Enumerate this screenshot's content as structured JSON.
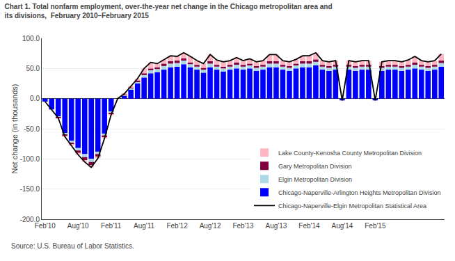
{
  "chart_data": {
    "type": "bar",
    "stacked": true,
    "title": "Chart 1. Total nonfarm employment, over-the-year net change in the Chicago metropolitan area and\nits divisions,  February 2010–February 2015",
    "y_label": "Net change (in thousands)",
    "annotations": [
      "Source: U.S. Bureau of Labor Statistics."
    ],
    "categories": [
      "Feb'10",
      null,
      null,
      null,
      null,
      "Aug'10",
      null,
      null,
      null,
      null,
      "Feb'11",
      null,
      null,
      null,
      null,
      "Aug'11",
      null,
      null,
      null,
      null,
      "Feb'12",
      null,
      null,
      null,
      null,
      "Aug'12",
      null,
      null,
      null,
      null,
      "Feb'13",
      null,
      null,
      null,
      null,
      "Aug'13",
      null,
      null,
      null,
      null,
      "Feb'14",
      null,
      null,
      null,
      null,
      "Aug'14",
      null,
      null,
      null,
      null,
      "Feb'15",
      null,
      null,
      null,
      null,
      null,
      null,
      null,
      null,
      null,
      null
    ],
    "series": [
      {
        "name": "Chicago-Naperville-Arlington Heights Metropolitan Division",
        "type": "bar",
        "color": "#0000FF",
        "values": [
          -5,
          -18,
          -30,
          -58,
          -70,
          -82,
          -92,
          -100,
          -88,
          -58,
          -22,
          0,
          5,
          15,
          25,
          35,
          42,
          44,
          48,
          52,
          53,
          57,
          52,
          48,
          43,
          52,
          48,
          45,
          48,
          50,
          48,
          50,
          46,
          48,
          52,
          52,
          48,
          46,
          50,
          52,
          52,
          55,
          48,
          46,
          48,
          -3,
          48,
          46,
          48,
          48,
          -3,
          46,
          48,
          48,
          46,
          48,
          50,
          48,
          46,
          48,
          53
        ]
      },
      {
        "name": "Elgin Metropolitan Division",
        "type": "bar",
        "color": "#ADD8E6",
        "values": [
          0,
          0,
          -1,
          -2,
          -3,
          -4,
          -5,
          -5,
          -4,
          -3,
          -2,
          0,
          1,
          2,
          3,
          4,
          5,
          5,
          6,
          6,
          6,
          6,
          5,
          5,
          5,
          6,
          5,
          5,
          5,
          6,
          5,
          5,
          5,
          5,
          6,
          6,
          5,
          5,
          5,
          6,
          6,
          6,
          5,
          5,
          5,
          0,
          5,
          5,
          5,
          5,
          0,
          5,
          5,
          5,
          5,
          5,
          6,
          5,
          5,
          5,
          6
        ]
      },
      {
        "name": "Gary Metropolitan Division",
        "type": "bar",
        "color": "#800040",
        "values": [
          0,
          0,
          -1,
          -2,
          -3,
          -4,
          -5,
          -5,
          -4,
          -3,
          -2,
          0,
          1,
          2,
          2,
          3,
          3,
          3,
          4,
          4,
          4,
          4,
          3,
          3,
          3,
          4,
          3,
          3,
          3,
          4,
          3,
          3,
          3,
          3,
          4,
          4,
          3,
          3,
          3,
          4,
          4,
          4,
          3,
          3,
          3,
          0,
          3,
          3,
          3,
          3,
          0,
          3,
          3,
          3,
          3,
          3,
          4,
          3,
          3,
          3,
          4
        ]
      },
      {
        "name": "Lake County-Kenosha County Metropolitan Division",
        "type": "bar",
        "color": "#FFB6C1",
        "values": [
          0,
          0,
          0,
          -1,
          -2,
          -3,
          -3,
          -4,
          -3,
          -2,
          -1,
          0,
          1,
          2,
          3,
          8,
          10,
          6,
          7,
          9,
          7,
          9,
          10,
          7,
          7,
          11,
          8,
          8,
          7,
          8,
          7,
          8,
          7,
          7,
          11,
          11,
          7,
          7,
          7,
          9,
          9,
          11,
          7,
          7,
          7,
          0,
          7,
          7,
          7,
          7,
          0,
          7,
          7,
          7,
          7,
          8,
          10,
          7,
          7,
          7,
          11
        ]
      },
      {
        "name": "Chicago-Naperville-Elgin Metropolitan Statistical Area",
        "type": "line",
        "color": "#000000",
        "values": [
          -5,
          -18,
          -32,
          -63,
          -78,
          -93,
          -105,
          -114,
          -99,
          -66,
          -27,
          0,
          8,
          21,
          33,
          50,
          60,
          58,
          65,
          71,
          70,
          76,
          70,
          63,
          58,
          73,
          64,
          61,
          63,
          68,
          63,
          66,
          61,
          63,
          73,
          73,
          63,
          61,
          65,
          71,
          71,
          76,
          63,
          61,
          63,
          -3,
          63,
          61,
          63,
          63,
          -3,
          61,
          63,
          63,
          61,
          64,
          70,
          63,
          61,
          63,
          74
        ]
      }
    ],
    "ylim": [
      -200,
      100
    ],
    "yticks": [
      {
        "value": -200,
        "label": "-200.0"
      },
      {
        "value": -150,
        "label": "-150.0"
      },
      {
        "value": -100,
        "label": "-100.0"
      },
      {
        "value": -50,
        "label": "-50.0"
      },
      {
        "value": 0,
        "label": "0.0"
      },
      {
        "value": 50,
        "label": "50.0"
      },
      {
        "value": 100,
        "label": "100.0"
      }
    ],
    "grid": true,
    "legend": "lower right"
  }
}
